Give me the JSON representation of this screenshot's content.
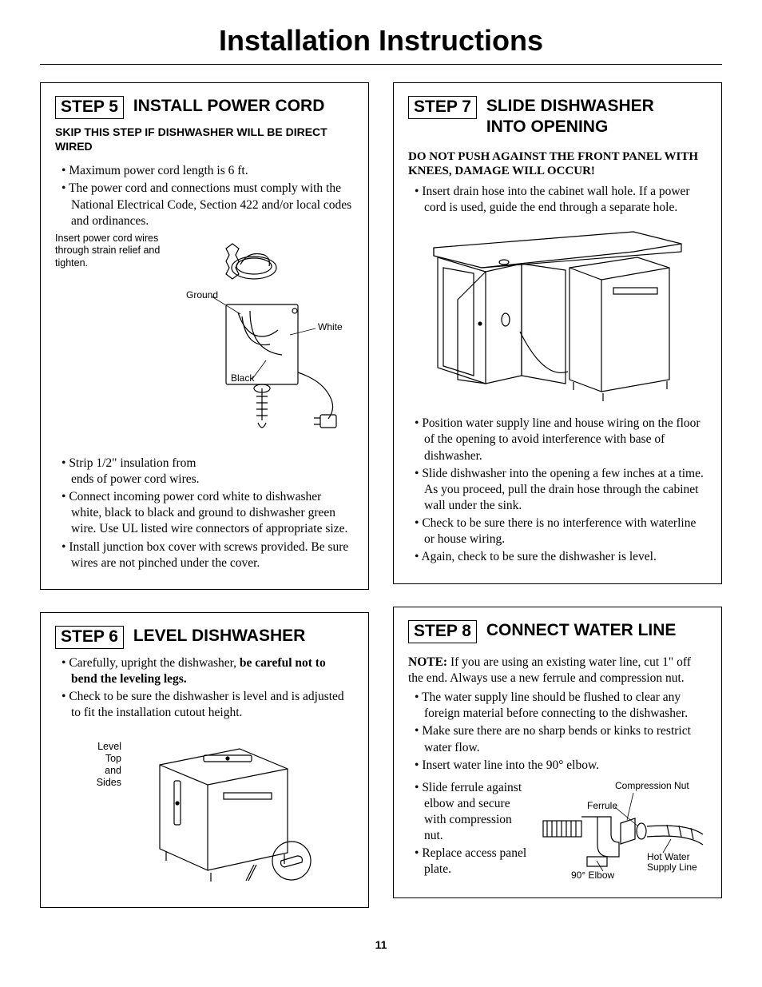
{
  "page_title": "Installation Instructions",
  "page_number": "11",
  "step5": {
    "badge": "STEP 5",
    "title": "INSTALL POWER CORD",
    "skip_note": "SKIP THIS STEP IF DISHWASHER WILL BE DIRECT WIRED",
    "bullets_top": [
      "Maximum power cord length is 6 ft.",
      "The power cord and connections must comply with the National Electrical Code, Section 422 and/or local codes and ordinances."
    ],
    "bullets_bottom": [
      "Strip 1/2\" insulation from ends of power cord wires.",
      "Connect incoming power cord white to dishwasher white, black to black and ground to dishwasher green wire. Use UL listed wire connectors of appropriate size.",
      "Install junction box cover with screws provided. Be sure wires are not pinched under the cover."
    ],
    "diagram": {
      "side_label": "Insert power cord wires through strain relief and tighten.",
      "label_ground": "Ground",
      "label_white": "White",
      "label_black": "Black"
    }
  },
  "step6": {
    "badge": "STEP 6",
    "title": "LEVEL DISHWASHER",
    "bullets_html": [
      "Carefully, upright the dishwasher, <b>be careful not to bend the leveling legs.</b>",
      "Check to be sure the dishwasher is level and is adjusted to fit the installation cutout height."
    ],
    "diagram": {
      "side_label": "Level\nTop\nand\nSides"
    }
  },
  "step7": {
    "badge": "STEP 7",
    "title": "SLIDE DISHWASHER INTO OPENING",
    "warning": "DO NOT PUSH AGAINST THE FRONT PANEL WITH KNEES, DAMAGE WILL OCCUR!",
    "bullets_top": [
      "Insert drain hose into the cabinet wall hole. If a power cord is used, guide the end through a separate hole."
    ],
    "bullets_bottom": [
      "Position water supply line and house wiring on the floor of the opening to avoid interference with base of dishwasher.",
      "Slide dishwasher into the opening a few inches at a time. As you proceed, pull the drain hose through the cabinet wall under the sink.",
      "Check to be sure there is no interference with waterline or house wiring.",
      "Again, check to be sure the dishwasher is level."
    ]
  },
  "step8": {
    "badge": "STEP 8",
    "title": "CONNECT WATER LINE",
    "note_html": "<b>NOTE:</b> If you are using an existing water line, cut 1\" off the end. Always use a new ferrule and compression nut.",
    "bullets": [
      "The water supply line should be flushed to clear any foreign material before connecting to the dishwasher.",
      "Make sure there are no sharp bends or kinks to restrict water flow.",
      "Insert water line into the 90° elbow.",
      "Slide ferrule against elbow and secure with compression nut.",
      "Replace access panel plate."
    ],
    "diagram": {
      "label_compression": "Compression Nut",
      "label_ferrule": "Ferrule",
      "label_hotwater": "Hot Water Supply Line",
      "label_elbow": "90° Elbow"
    }
  }
}
